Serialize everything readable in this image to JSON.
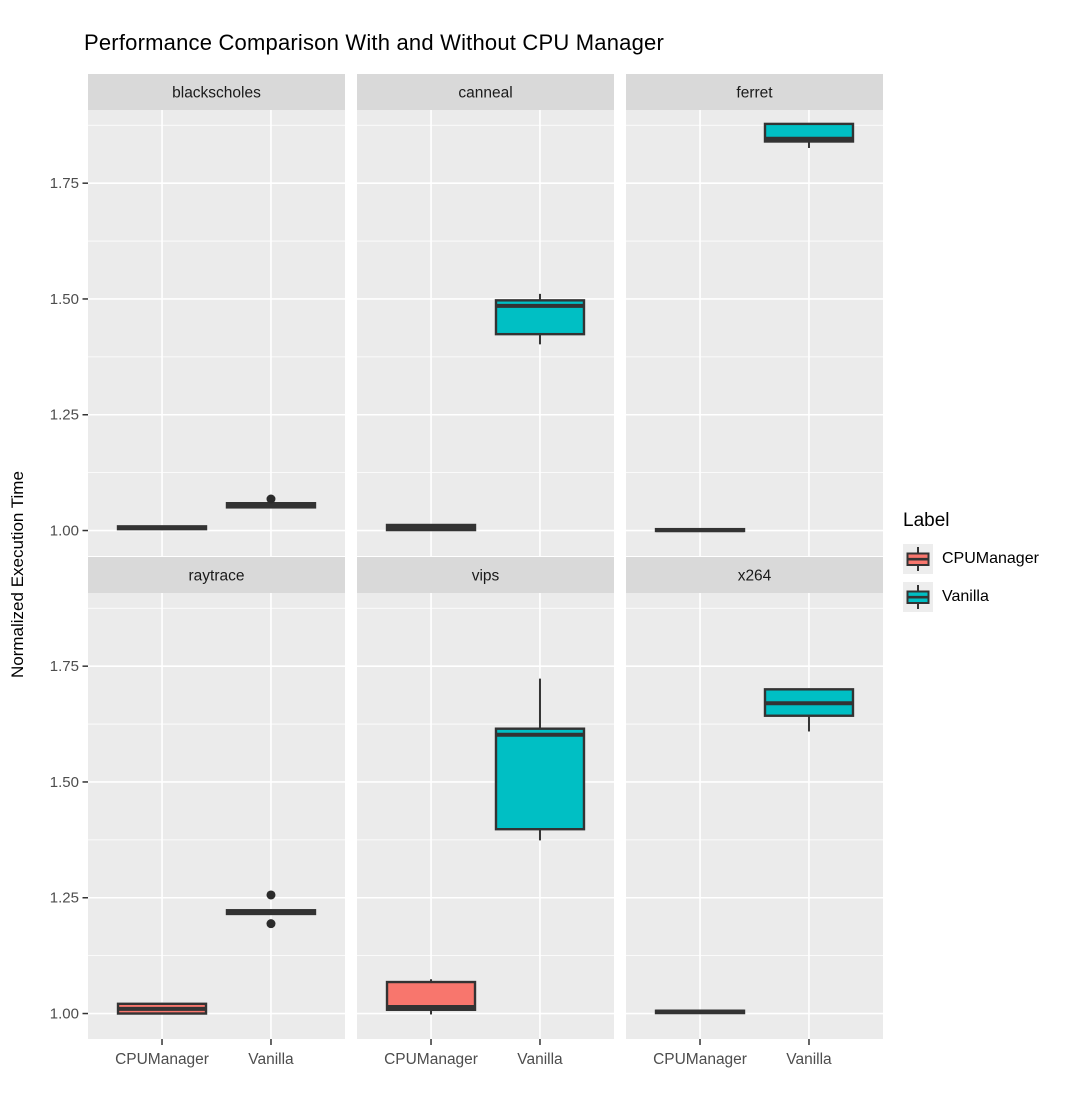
{
  "title": "Performance Comparison With and Without CPU Manager",
  "y_axis": {
    "title": "Normalized Execution Time",
    "tick_labels": [
      "1.00",
      "1.25",
      "1.50",
      "1.75"
    ]
  },
  "x_axis": {
    "categories": [
      "CPUManager",
      "Vanilla"
    ]
  },
  "legend": {
    "title": "Label",
    "entries": [
      {
        "label": "CPUManager",
        "color": "#F8766D"
      },
      {
        "label": "Vanilla",
        "color": "#00BFC4"
      }
    ]
  },
  "colors": {
    "panel_bg": "#EBEBEB",
    "strip_bg": "#D9D9D9",
    "strip_text": "#1A1A1A",
    "grid": "#FFFFFF",
    "box_outline": "#333333",
    "axis_text": "#4D4D4D",
    "outlier": "#2B2B2B",
    "legend_key_bg": "#EDEDED",
    "cpumanager_fill": "#F8766D",
    "vanilla_fill": "#00BFC4"
  },
  "chart_data": {
    "type": "boxplot",
    "title": "Performance Comparison With and Without CPU Manager",
    "xlabel": "",
    "ylabel": "Normalized Execution Time",
    "ylim": [
      0.945,
      1.908
    ],
    "y_major_ticks": [
      1.0,
      1.25,
      1.5,
      1.75
    ],
    "y_minor_ticks": [
      1.125,
      1.375,
      1.625,
      1.875
    ],
    "y_tick_labels": [
      "1.00",
      "1.25",
      "1.50",
      "1.75"
    ],
    "categories": [
      "CPUManager",
      "Vanilla"
    ],
    "legend_position": "right",
    "grid": true,
    "facet_layout": {
      "rows": 2,
      "cols": 3
    },
    "facets": [
      {
        "name": "blackscholes",
        "boxes": [
          {
            "group": "CPUManager",
            "min": 1.002,
            "q1": 1.003,
            "median": 1.006,
            "q3": 1.009,
            "max": 1.01,
            "outliers": []
          },
          {
            "group": "Vanilla",
            "min": 1.048,
            "q1": 1.05,
            "median": 1.055,
            "q3": 1.059,
            "max": 1.061,
            "outliers": [
              1.068
            ]
          }
        ]
      },
      {
        "name": "canneal",
        "boxes": [
          {
            "group": "CPUManager",
            "min": 0.999,
            "q1": 1.001,
            "median": 1.006,
            "q3": 1.012,
            "max": 1.014,
            "outliers": []
          },
          {
            "group": "Vanilla",
            "min": 1.402,
            "q1": 1.424,
            "median": 1.485,
            "q3": 1.497,
            "max": 1.511,
            "outliers": []
          }
        ]
      },
      {
        "name": "ferret",
        "boxes": [
          {
            "group": "CPUManager",
            "min": 0.998,
            "q1": 0.999,
            "median": 1.001,
            "q3": 1.003,
            "max": 1.004,
            "outliers": []
          },
          {
            "group": "Vanilla",
            "min": 1.826,
            "q1": 1.84,
            "median": 1.846,
            "q3": 1.878,
            "max": 1.88,
            "outliers": []
          }
        ]
      },
      {
        "name": "raytrace",
        "boxes": [
          {
            "group": "CPUManager",
            "min": 0.998,
            "q1": 1.0,
            "median": 1.01,
            "q3": 1.021,
            "max": 1.023,
            "outliers": []
          },
          {
            "group": "Vanilla",
            "min": 1.213,
            "q1": 1.215,
            "median": 1.219,
            "q3": 1.223,
            "max": 1.225,
            "outliers": [
              1.256,
              1.194
            ]
          }
        ]
      },
      {
        "name": "vips",
        "boxes": [
          {
            "group": "CPUManager",
            "min": 0.998,
            "q1": 1.008,
            "median": 1.014,
            "q3": 1.068,
            "max": 1.074,
            "outliers": []
          },
          {
            "group": "Vanilla",
            "min": 1.374,
            "q1": 1.398,
            "median": 1.602,
            "q3": 1.615,
            "max": 1.723,
            "outliers": []
          }
        ]
      },
      {
        "name": "x264",
        "boxes": [
          {
            "group": "CPUManager",
            "min": 1.0,
            "q1": 1.001,
            "median": 1.004,
            "q3": 1.006,
            "max": 1.007,
            "outliers": []
          },
          {
            "group": "Vanilla",
            "min": 1.609,
            "q1": 1.643,
            "median": 1.67,
            "q3": 1.7,
            "max": 1.702,
            "outliers": []
          }
        ]
      }
    ]
  }
}
